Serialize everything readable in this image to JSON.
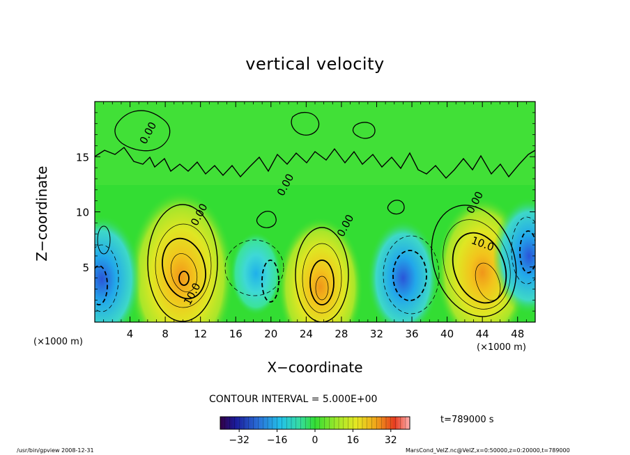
{
  "chart": {
    "title": "vertical velocity",
    "xlabel": "X−coordinate",
    "ylabel": "Z−coordinate",
    "x_unit_left": "(×1000 m)",
    "x_unit_right": "(×1000 m)",
    "contour_interval": "CONTOUR INTERVAL = 5.000E+00",
    "time_label": "t=789000 s",
    "footer_left": "/usr/bin/gpview   2008-12-31",
    "footer_right": "MarsCond_VelZ.nc@VelZ,x=0:50000,z=0:20000,t=789000"
  },
  "colors": {
    "background_field": "#33dd33",
    "palette": [
      "#000044",
      "#2222aa",
      "#2a6fd8",
      "#22b8e8",
      "#40e8c8",
      "#33dd33",
      "#9ae622",
      "#e6e622",
      "#f0a51a",
      "#e63b1f",
      "#ffaaaa"
    ]
  },
  "chart_data": {
    "type": "heatmap",
    "title": "vertical velocity",
    "xlabel": "X−coordinate",
    "ylabel": "Z−coordinate",
    "xlim": [
      0,
      50
    ],
    "ylim": [
      0,
      20
    ],
    "x_ticks": [
      4,
      8,
      12,
      16,
      20,
      24,
      28,
      32,
      36,
      40,
      44,
      48
    ],
    "y_ticks": [
      5,
      10,
      15
    ],
    "contour_labels": [
      {
        "text": "0.00",
        "x": 6.4,
        "z": 17.0
      },
      {
        "text": "0.00",
        "x": 12.2,
        "z": 9.6
      },
      {
        "text": "0.00",
        "x": 22.0,
        "z": 12.3
      },
      {
        "text": "0.00",
        "x": 28.8,
        "z": 8.6
      },
      {
        "text": "0.00",
        "x": 43.5,
        "z": 10.7
      },
      {
        "text": "10.0",
        "x": 11.4,
        "z": 2.4
      },
      {
        "text": "10.0",
        "x": 43.9,
        "z": 6.8
      }
    ],
    "features": [
      {
        "kind": "updraft",
        "x": 9.8,
        "z": 4.1,
        "peak": 24
      },
      {
        "kind": "updraft",
        "x": 25.6,
        "z": 3.2,
        "peak": 18
      },
      {
        "kind": "updraft",
        "x": 44.0,
        "z": 4.5,
        "peak": 20
      },
      {
        "kind": "downdraft",
        "x": 0.8,
        "z": 3.9,
        "peak": -16
      },
      {
        "kind": "downdraft",
        "x": 18.3,
        "z": 4.4,
        "peak": -8
      },
      {
        "kind": "downdraft",
        "x": 35.0,
        "z": 4.0,
        "peak": -14
      },
      {
        "kind": "downdraft",
        "x": 49.3,
        "z": 6.0,
        "peak": -14
      }
    ],
    "colorbar": {
      "min": -40,
      "max": 40,
      "ticks": [
        -32,
        -16,
        0,
        16,
        32
      ],
      "tick_labels": [
        "−32",
        "−16",
        "0",
        "16",
        "32"
      ]
    }
  }
}
